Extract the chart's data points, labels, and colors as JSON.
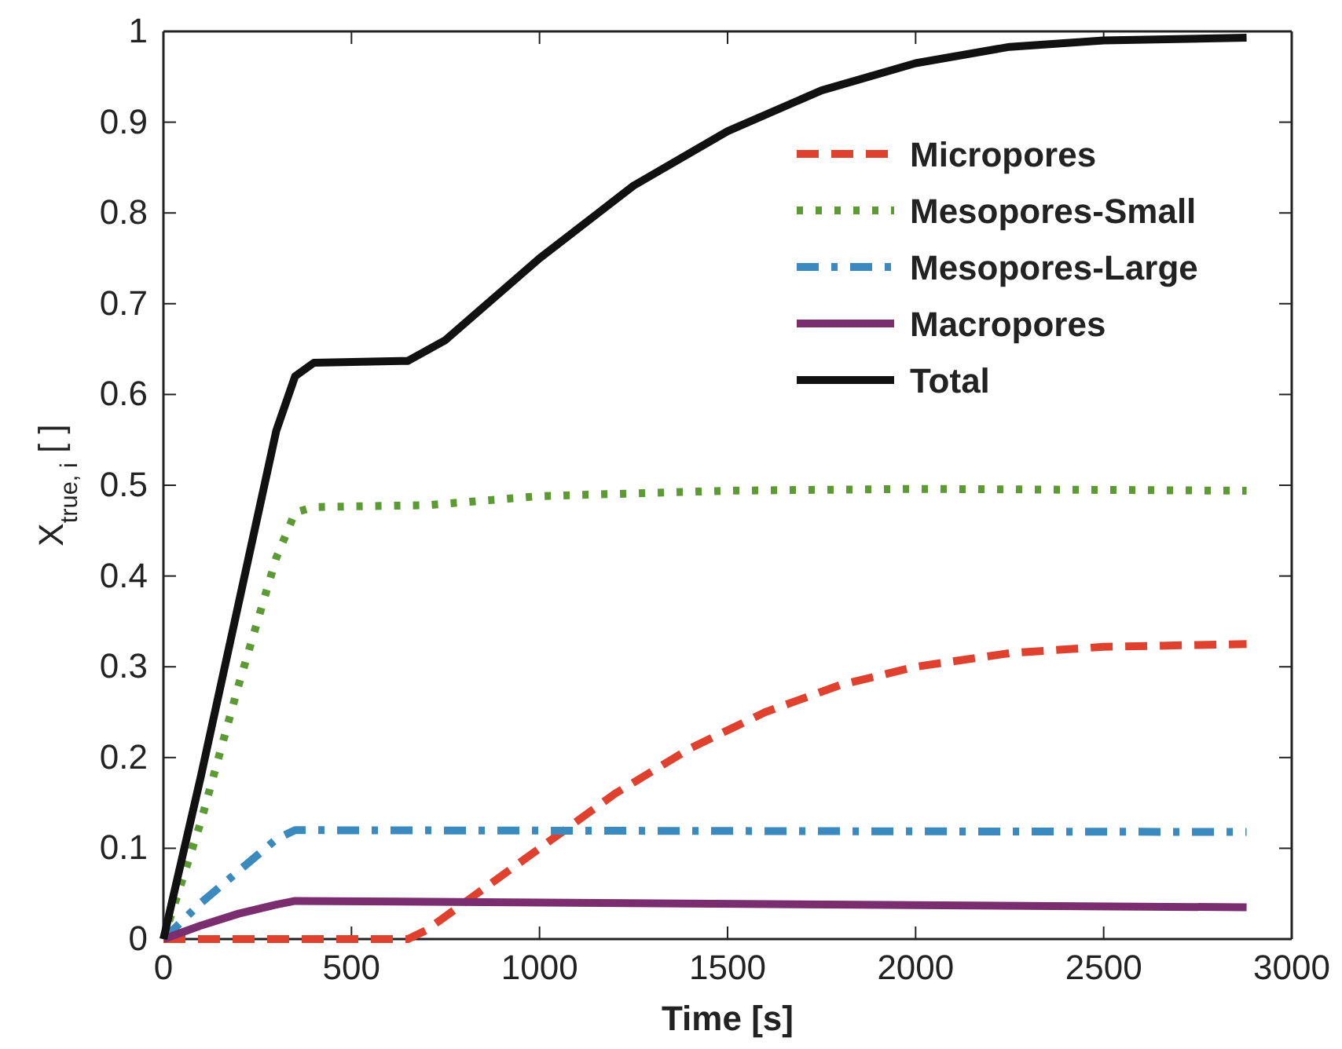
{
  "chart_data": {
    "type": "line",
    "xlabel": "Time [s]",
    "ylabel": "X$_{true, i}$ [ ]",
    "xlim": [
      0,
      3000
    ],
    "xticks": [
      0,
      500,
      1000,
      1500,
      2000,
      2500,
      3000
    ],
    "ylim": [
      0,
      1
    ],
    "yticks": [
      0,
      0.1,
      0.2,
      0.3,
      0.4,
      0.5,
      0.6,
      0.7,
      0.8,
      0.9,
      1
    ],
    "grid": false,
    "legend": "top right",
    "marker": "none",
    "series": [
      {
        "name": "Micropores",
        "color": "#e0402e",
        "line_style": "dashed",
        "x": [
          0,
          650,
          700,
          800,
          1000,
          1200,
          1400,
          1600,
          1800,
          2000,
          2250,
          2500,
          2880
        ],
        "values": [
          0,
          0,
          0.01,
          0.04,
          0.1,
          0.16,
          0.21,
          0.25,
          0.28,
          0.3,
          0.315,
          0.322,
          0.325
        ]
      },
      {
        "name": "Mesopores-Small",
        "color": "#5c9a34",
        "line_style": "dotted",
        "x": [
          0,
          100,
          200,
          300,
          350,
          400,
          700,
          1000,
          1500,
          2000,
          2880
        ],
        "values": [
          0,
          0.13,
          0.28,
          0.42,
          0.47,
          0.476,
          0.478,
          0.488,
          0.494,
          0.496,
          0.494
        ]
      },
      {
        "name": "Mesopores-Large",
        "color": "#3a8ac0",
        "line_style": "dashdot",
        "x": [
          0,
          100,
          200,
          300,
          350,
          2880
        ],
        "values": [
          0,
          0.04,
          0.075,
          0.11,
          0.12,
          0.118
        ]
      },
      {
        "name": "Macropores",
        "color": "#7a2e70",
        "line_style": "solid",
        "x": [
          0,
          100,
          200,
          300,
          350,
          2880
        ],
        "values": [
          0,
          0.015,
          0.028,
          0.038,
          0.042,
          0.035
        ]
      },
      {
        "name": "Total",
        "color": "#111111",
        "line_style": "solid",
        "x": [
          0,
          100,
          200,
          300,
          350,
          400,
          650,
          750,
          1000,
          1250,
          1500,
          1750,
          2000,
          2250,
          2500,
          2880
        ],
        "values": [
          0,
          0.18,
          0.37,
          0.56,
          0.62,
          0.635,
          0.637,
          0.66,
          0.75,
          0.83,
          0.89,
          0.935,
          0.965,
          0.983,
          0.99,
          0.993
        ]
      }
    ]
  }
}
